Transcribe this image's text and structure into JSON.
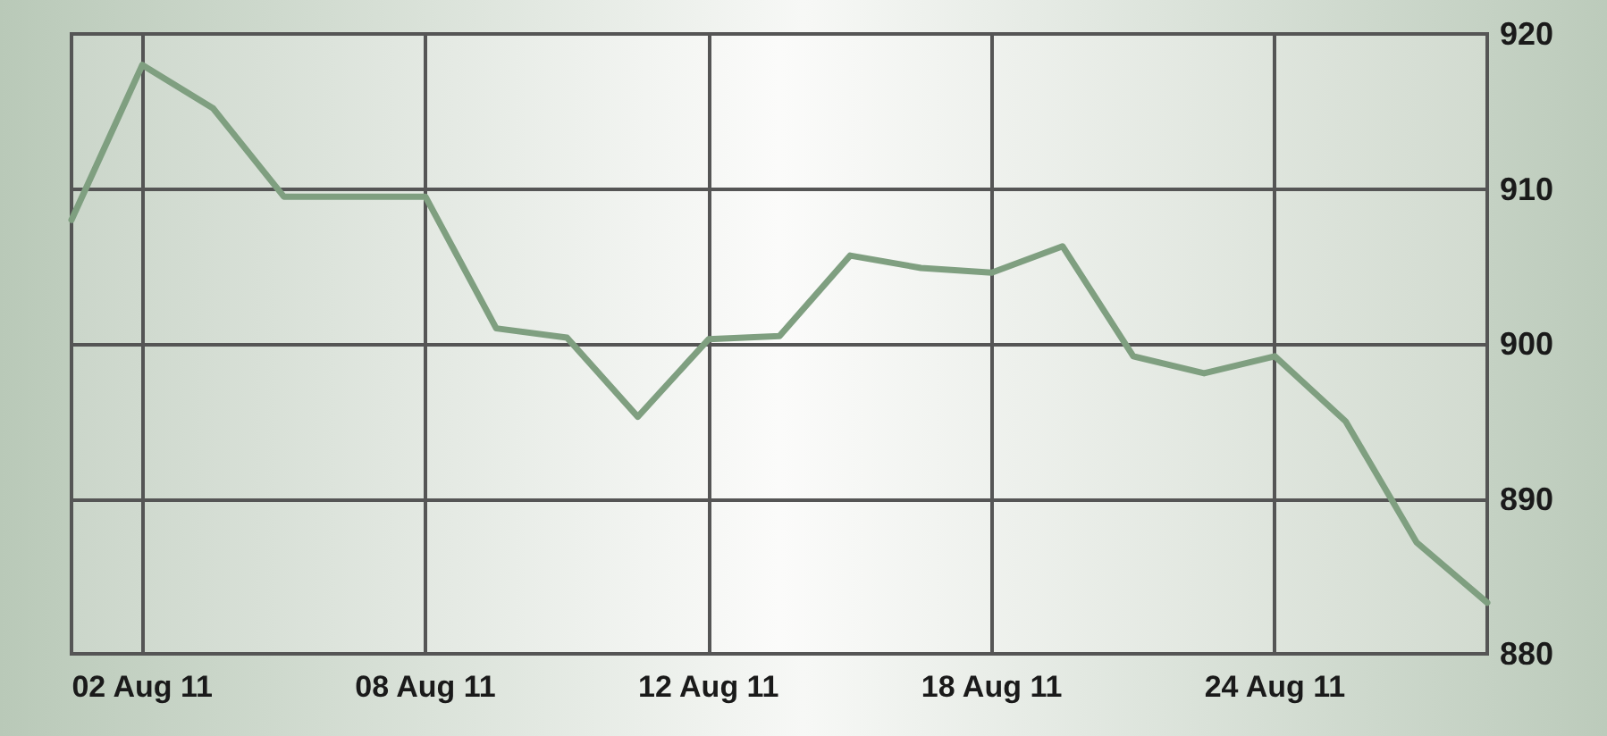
{
  "chart_data": {
    "type": "line",
    "categories": [
      null,
      "02 Aug 11",
      null,
      null,
      null,
      "08 Aug 11",
      null,
      null,
      null,
      "12 Aug 11",
      null,
      null,
      null,
      "18 Aug 11",
      null,
      null,
      null,
      "24 Aug 11",
      null,
      null,
      null
    ],
    "values": [
      908,
      918,
      915.2,
      909.5,
      909.5,
      909.5,
      901,
      900.4,
      895.3,
      900.3,
      900.5,
      905.7,
      904.9,
      904.6,
      906.3,
      899.2,
      898.1,
      899.2,
      895,
      887.2,
      883.3
    ],
    "color": "#7f9f80",
    "ylim": [
      880,
      920
    ],
    "yticks": [
      880,
      890,
      900,
      910,
      920
    ],
    "grid": true
  }
}
